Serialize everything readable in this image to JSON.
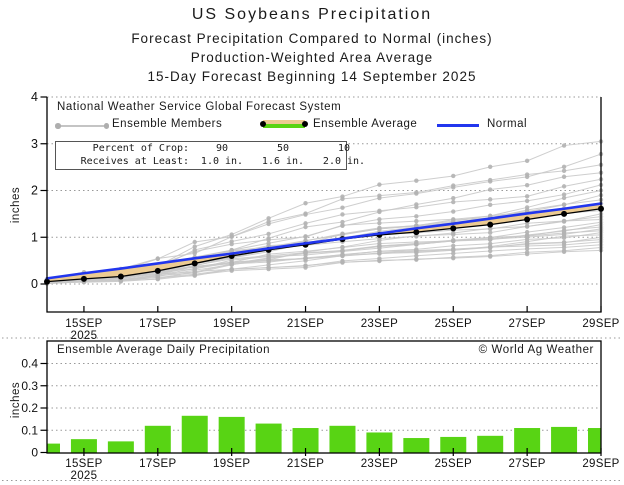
{
  "title": {
    "line1": "US Soybeans Precipitation",
    "line2": "Forecast Precipitation Compared to Normal (inches)",
    "line3": "Production-Weighted Area Average",
    "line4": "15-Day Forecast Beginning 14 September 2025"
  },
  "top_chart": {
    "source_label": "National Weather Service Global Forecast System",
    "legend": {
      "members": "Ensemble Members",
      "average": "Ensemble Average",
      "normal": "Normal"
    },
    "percent_box": {
      "row1_label": "Percent of Crop:",
      "row1_values": [
        "90",
        "50",
        "10"
      ],
      "row2_label": "Receives at Least:",
      "row2_values": [
        "1.0 in.",
        "1.6 in.",
        "2.0 in."
      ]
    },
    "ylabel": "inches"
  },
  "bottom_chart": {
    "title": "Ensemble Average Daily Precipitation",
    "copyright": "© World Ag Weather",
    "ylabel": "inches"
  },
  "colors": {
    "bar_green": "#58d414",
    "normal_blue": "#2236ee",
    "band_tan": "#eccb92",
    "member_gray": "#c9c9c9",
    "member_dot_gray": "#b3b3b3",
    "average_black": "#000000",
    "grid_gray": "#999999",
    "frame_black": "#000000"
  },
  "chart_data": [
    {
      "type": "line",
      "title": "Forecast cumulative precipitation vs normal",
      "ylabel": "inches",
      "ylim": [
        -0.6,
        4
      ],
      "yticks": [
        0,
        1,
        2,
        3,
        4
      ],
      "categories": [
        "14SEP",
        "15SEP",
        "16SEP",
        "17SEP",
        "18SEP",
        "19SEP",
        "20SEP",
        "21SEP",
        "22SEP",
        "23SEP",
        "24SEP",
        "25SEP",
        "26SEP",
        "27SEP",
        "28SEP",
        "29SEP"
      ],
      "xtick_idx": [
        1,
        3,
        5,
        7,
        9,
        11,
        13,
        15
      ],
      "xtick_labels": [
        "15SEP",
        "17SEP",
        "19SEP",
        "21SEP",
        "23SEP",
        "25SEP",
        "27SEP",
        "29SEP"
      ],
      "year": "2025",
      "grid": "dotted",
      "series": [
        {
          "name": "Ensemble Average",
          "values": [
            0.05,
            0.11,
            0.16,
            0.28,
            0.44,
            0.6,
            0.73,
            0.84,
            0.96,
            1.05,
            1.11,
            1.19,
            1.27,
            1.38,
            1.5,
            1.61
          ]
        },
        {
          "name": "Normal",
          "values": [
            0.12,
            0.23,
            0.33,
            0.44,
            0.55,
            0.65,
            0.76,
            0.87,
            0.97,
            1.08,
            1.19,
            1.29,
            1.4,
            1.51,
            1.61,
            1.72
          ]
        }
      ],
      "members": {
        "note": "ensemble member trajectories approximated: cumulative paths generated from daily shape, scaled to these final totals",
        "finals": [
          0.72,
          0.78,
          0.84,
          0.9,
          0.95,
          1.0,
          1.05,
          1.1,
          1.14,
          1.18,
          1.22,
          1.27,
          1.32,
          1.38,
          1.44,
          1.5,
          1.57,
          1.64,
          1.72,
          1.8,
          1.9,
          2.0,
          2.12,
          2.24,
          2.38,
          2.55,
          2.78,
          3.05
        ],
        "seeds": [
          3,
          7,
          11,
          15,
          19,
          23,
          27,
          31,
          35,
          39,
          43,
          47,
          51,
          55,
          59,
          63,
          67,
          71,
          75,
          79,
          83,
          87,
          91,
          95,
          99,
          103,
          107,
          111
        ]
      }
    },
    {
      "type": "bar",
      "title": "Ensemble Average Daily Precipitation",
      "ylabel": "inches",
      "ylim": [
        0,
        0.5
      ],
      "yticks": [
        0,
        0.1,
        0.2,
        0.3,
        0.4
      ],
      "ytick_labels": [
        "0",
        "0.1",
        "0.2",
        "0.3",
        "0.4"
      ],
      "categories": [
        "14SEP",
        "15SEP",
        "16SEP",
        "17SEP",
        "18SEP",
        "19SEP",
        "20SEP",
        "21SEP",
        "22SEP",
        "23SEP",
        "24SEP",
        "25SEP",
        "26SEP",
        "27SEP",
        "28SEP",
        "29SEP"
      ],
      "xtick_idx": [
        1,
        3,
        5,
        7,
        9,
        11,
        13,
        15
      ],
      "xtick_labels": [
        "15SEP",
        "17SEP",
        "19SEP",
        "21SEP",
        "23SEP",
        "25SEP",
        "27SEP",
        "29SEP"
      ],
      "year": "2025",
      "grid": "dotted",
      "values": [
        0.04,
        0.06,
        0.05,
        0.12,
        0.165,
        0.16,
        0.13,
        0.11,
        0.12,
        0.09,
        0.065,
        0.07,
        0.075,
        0.11,
        0.115,
        0.11
      ]
    }
  ]
}
